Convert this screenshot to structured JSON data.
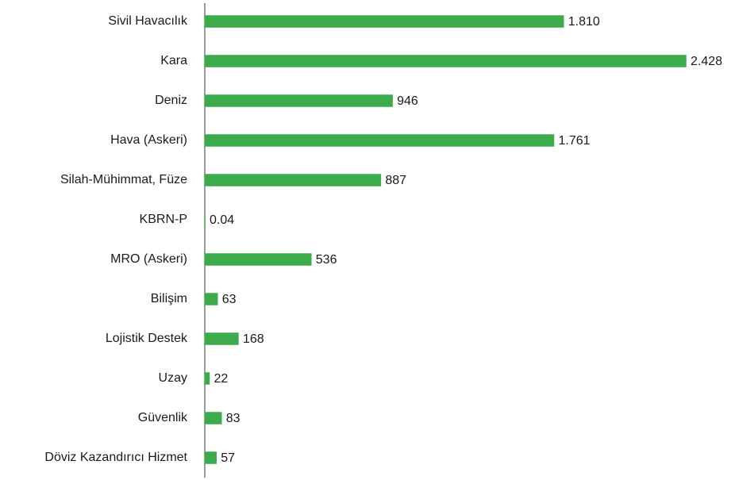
{
  "chart_data": {
    "type": "bar",
    "orientation": "horizontal",
    "categories": [
      "Sivil Havacılık",
      "Kara",
      "Deniz",
      "Hava (Askeri)",
      "Silah-Mühimmat, Füze",
      "KBRN-P",
      "MRO (Askeri)",
      "Bilişim",
      "Lojistik Destek",
      "Uzay",
      "Güvenlik",
      "Döviz Kazandırıcı Hizmet"
    ],
    "values": [
      1810,
      2428,
      946,
      1761,
      887,
      0.04,
      536,
      63,
      168,
      22,
      83,
      57
    ],
    "value_labels": [
      "1.810",
      "2.428",
      "946",
      "1.761",
      "887",
      "0.04",
      "536",
      "63",
      "168",
      "22",
      "83",
      "57"
    ],
    "color": "#3cab4b"
  }
}
